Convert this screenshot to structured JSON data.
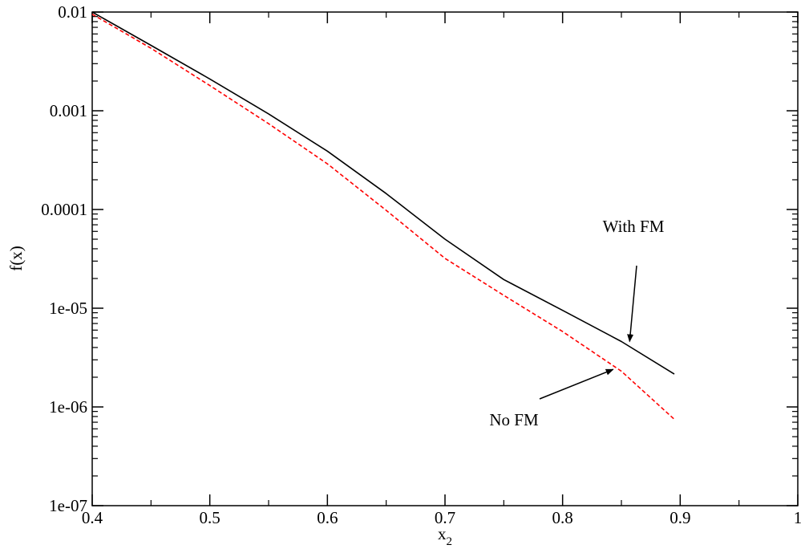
{
  "chart_data": {
    "type": "line",
    "title": "",
    "xlabel": "x",
    "xlabel_subscript": "2",
    "ylabel": "f(x)",
    "xlim": [
      0.4,
      1.0
    ],
    "ylim": [
      1e-07,
      0.01
    ],
    "yscale": "log",
    "grid": false,
    "x_ticks": [
      {
        "value": 0.4,
        "label": "0.4"
      },
      {
        "value": 0.5,
        "label": "0.5"
      },
      {
        "value": 0.6,
        "label": "0.6"
      },
      {
        "value": 0.7,
        "label": "0.7"
      },
      {
        "value": 0.8,
        "label": "0.8"
      },
      {
        "value": 0.9,
        "label": "0.9"
      },
      {
        "value": 1.0,
        "label": "1"
      }
    ],
    "y_ticks": [
      {
        "value": 1e-07,
        "label": "1e-07"
      },
      {
        "value": 1e-06,
        "label": "1e-06"
      },
      {
        "value": 1e-05,
        "label": "1e-05"
      },
      {
        "value": 0.0001,
        "label": "0.0001"
      },
      {
        "value": 0.001,
        "label": "0.001"
      },
      {
        "value": 0.01,
        "label": "0.01"
      }
    ],
    "series": [
      {
        "name": "With FM",
        "color": "#000000",
        "dash": "solid",
        "x": [
          0.4,
          0.45,
          0.5,
          0.55,
          0.6,
          0.65,
          0.7,
          0.75,
          0.8,
          0.85,
          0.895
        ],
        "y": [
          0.01,
          0.0046,
          0.0021,
          0.00093,
          0.00039,
          0.000145,
          5e-05,
          1.95e-05,
          9.5e-06,
          4.6e-06,
          2.15e-06
        ]
      },
      {
        "name": "No FM",
        "color": "#ff0000",
        "dash": "dashed",
        "x": [
          0.4,
          0.45,
          0.5,
          0.55,
          0.6,
          0.65,
          0.7,
          0.75,
          0.8,
          0.85,
          0.895
        ],
        "y": [
          0.0095,
          0.0043,
          0.0018,
          0.00074,
          0.00029,
          9.8e-05,
          3.2e-05,
          1.35e-05,
          5.8e-06,
          2.3e-06,
          7.5e-07
        ]
      }
    ],
    "annotations": [
      {
        "text": "With FM",
        "series": "With FM",
        "arrow_to": {
          "x": 0.857,
          "y": 4.6e-06
        }
      },
      {
        "text": "No FM",
        "series": "No FM",
        "arrow_to": {
          "x": 0.843,
          "y": 2.4e-06
        }
      }
    ]
  }
}
